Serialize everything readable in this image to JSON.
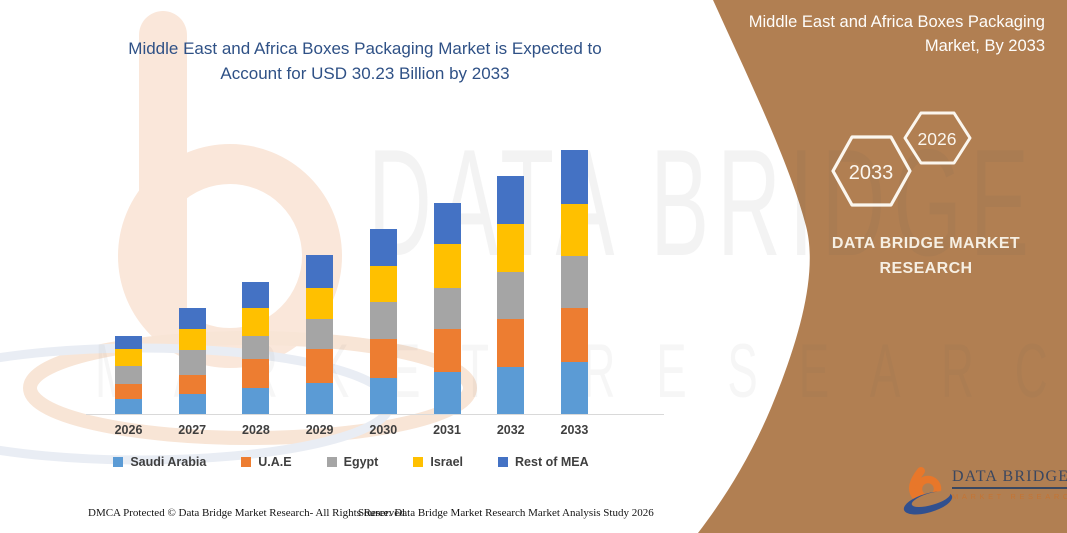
{
  "header": {
    "title_line1": "Middle East and Africa Boxes Packaging Market is Expected to",
    "title_line2": "Account for USD 30.23 Billion by 2033",
    "title_color": "#2F5186"
  },
  "banner": {
    "color": "#B17F52",
    "title": "Middle East and Africa Boxes Packaging Market, By 2033",
    "hexagon_large_year": "2033",
    "hexagon_small_year": "2026",
    "brand_line1": "DATA BRIDGE MARKET",
    "brand_line2": "RESEARCH"
  },
  "logo": {
    "title": "DATA BRIDGE",
    "subtitle": "MARKET RESEARCH"
  },
  "watermark": {
    "line1": "DATA BRIDGE",
    "line2": "MARKET RESEARCH"
  },
  "chart_data": {
    "type": "bar",
    "stacked": true,
    "title": "Middle East and Africa Boxes Packaging Market is Expected to Account for USD 30.23 Billion by 2033",
    "units": "USD Billion",
    "categories": [
      "2026",
      "2027",
      "2028",
      "2029",
      "2030",
      "2031",
      "2032",
      "2033"
    ],
    "series": [
      {
        "name": "Saudi Arabia",
        "color": "#5B9BD5",
        "values": [
          1.76,
          2.29,
          2.94,
          3.52,
          4.16,
          4.84,
          5.42,
          5.92
        ]
      },
      {
        "name": "U.A.E",
        "color": "#ED7D31",
        "values": [
          1.69,
          2.21,
          3.32,
          3.89,
          4.39,
          4.84,
          5.46,
          6.26
        ]
      },
      {
        "name": "Egypt",
        "color": "#A5A5A5",
        "values": [
          2.03,
          2.83,
          2.67,
          3.47,
          4.27,
          4.69,
          5.42,
          5.95
        ]
      },
      {
        "name": "Israel",
        "color": "#FFC000",
        "values": [
          1.94,
          2.37,
          3.17,
          3.52,
          4.16,
          5.04,
          5.42,
          5.87
        ]
      },
      {
        "name": "Rest of MEA",
        "color": "#4472C4",
        "values": [
          1.55,
          2.44,
          2.98,
          3.81,
          4.27,
          4.77,
          5.53,
          6.23
        ]
      }
    ],
    "totals": [
      8.97,
      12.14,
      15.08,
      18.21,
      21.25,
      24.18,
      27.25,
      30.23
    ],
    "xlabel": "",
    "ylabel": "",
    "ylim": [
      0,
      30.23
    ],
    "grid": false,
    "y_axis_visible": false,
    "legend_position": "bottom"
  },
  "footer": {
    "left": "DMCA Protected © Data Bridge Market Research-  All Rights Reserved.",
    "source": "Source: Data Bridge Market Research  Market Analysis Study 2026"
  }
}
